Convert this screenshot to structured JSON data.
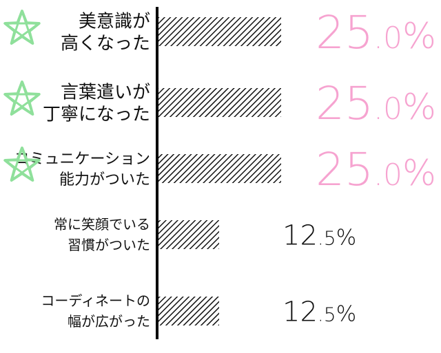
{
  "chart_data": {
    "type": "bar",
    "orientation": "horizontal",
    "categories": [
      [
        "美意識が",
        "高くなった"
      ],
      [
        "言葉遣いが",
        "丁寧になった"
      ],
      [
        "コミュニケーション",
        "能力がついた"
      ],
      [
        "常に笑顔でいる",
        "習慣がついた"
      ],
      [
        "コーディネートの",
        "幅が広がった"
      ]
    ],
    "values": [
      25.0,
      25.0,
      25.0,
      12.5,
      12.5
    ],
    "value_labels": [
      {
        "num": "25",
        "dec": ".0",
        "unit": "%"
      },
      {
        "num": "25",
        "dec": ".0",
        "unit": "%"
      },
      {
        "num": "25",
        "dec": ".0",
        "unit": "%"
      },
      {
        "num": "12",
        "dec": ".5",
        "unit": "%"
      },
      {
        "num": "12",
        "dec": ".5",
        "unit": "%"
      }
    ],
    "starred": [
      true,
      true,
      true,
      false,
      false
    ],
    "xlim": [
      0,
      25
    ],
    "grid": false,
    "title": "",
    "xlabel": "",
    "ylabel": ""
  },
  "colors": {
    "highlight_value": "#f6a3d0",
    "normal_value": "#111111",
    "star": "#8fe09b",
    "bar_hatch": "#111111",
    "axis": "#000000"
  },
  "icons": [
    "star-icon"
  ]
}
